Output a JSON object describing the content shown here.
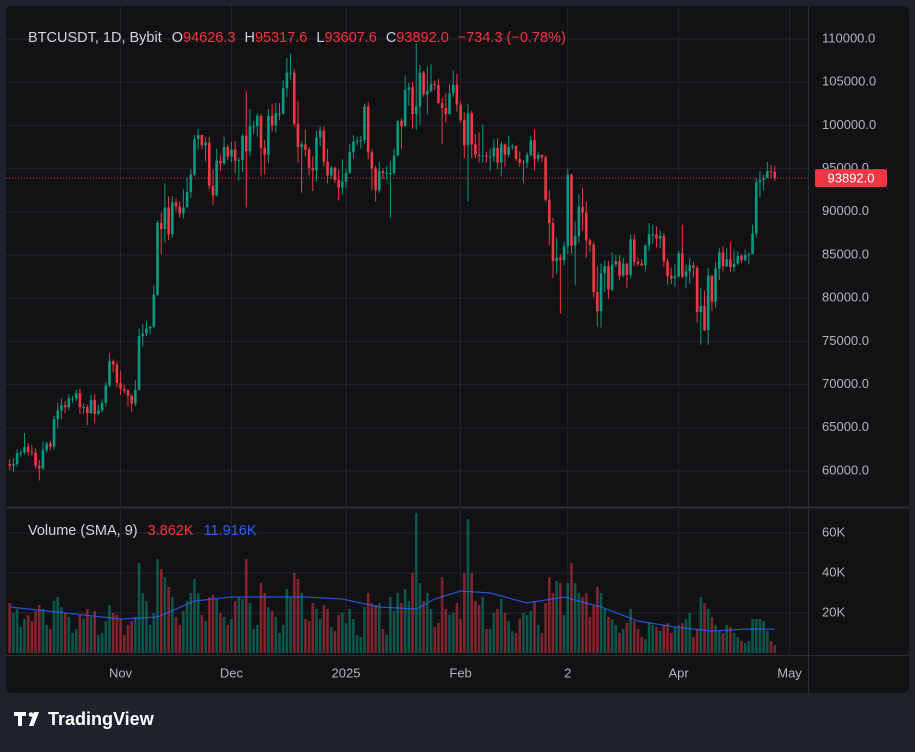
{
  "chart_data": {
    "type": "candlestick",
    "title": "BTCUSDT, 1D, Bybit",
    "header": [
      {
        "key": "O",
        "value": 94626.3,
        "label": "94626.3"
      },
      {
        "key": "H",
        "value": 95317.6,
        "label": "95317.6"
      },
      {
        "key": "L",
        "value": 93607.6,
        "label": "93607.6"
      },
      {
        "key": "C",
        "value": 93892.0,
        "label": "93892.0"
      }
    ],
    "change": "−734.3 (−0.78%)",
    "up_color": "#089981",
    "down_color": "#f23645",
    "grid": true,
    "xlim": [
      -1,
      216
    ],
    "xticks": [
      {
        "value": 30,
        "label": "Nov"
      },
      {
        "value": 60,
        "label": "Dec"
      },
      {
        "value": 91,
        "label": "2025"
      },
      {
        "value": 122,
        "label": "Feb"
      },
      {
        "value": 151,
        "label": "2"
      },
      {
        "value": 181,
        "label": "Apr"
      },
      {
        "value": 211,
        "label": "May"
      }
    ],
    "ylim": [
      55830,
      113820
    ],
    "yticks": [
      {
        "value": 60000,
        "label": "60000.0"
      },
      {
        "value": 65000,
        "label": "65000.0"
      },
      {
        "value": 70000,
        "label": "70000.0"
      },
      {
        "value": 75000,
        "label": "75000.0"
      },
      {
        "value": 80000,
        "label": "80000.0"
      },
      {
        "value": 85000,
        "label": "85000.0"
      },
      {
        "value": 90000,
        "label": "90000.0"
      },
      {
        "value": 95000,
        "label": "95000.0"
      },
      {
        "value": 100000,
        "label": "100000.0"
      },
      {
        "value": 105000,
        "label": "105000.0"
      },
      {
        "value": 110000,
        "label": "110000.0"
      }
    ],
    "last_price": {
      "value": 93892.0,
      "label": "93892.0"
    },
    "open": [
      60800,
      60600,
      60800,
      62100,
      62100,
      62800,
      62200,
      62100,
      60600,
      60300,
      62400,
      63200,
      62800,
      66000,
      67000,
      67600,
      67400,
      68400,
      68400,
      69000,
      67400,
      67400,
      66700,
      68200,
      66600,
      67000,
      67900,
      69900,
      72700,
      72300,
      70200,
      69500,
      69300,
      68700,
      67800,
      69400,
      75600,
      75900,
      76500,
      76700,
      80400,
      88700,
      88000,
      90500,
      87400,
      91100,
      90600,
      89800,
      90500,
      92300,
      94300,
      98400,
      98900,
      97700,
      98000,
      93000,
      91900,
      95900,
      95600,
      97500,
      96400,
      97200,
      95900,
      96000,
      98800,
      97000,
      99900,
      99900,
      101100,
      97400,
      96600,
      101100,
      100000,
      101400,
      101400,
      104300,
      106100,
      106100,
      100200,
      97500,
      97800,
      97200,
      95100,
      94800,
      98600,
      99400,
      95800,
      94200,
      95100,
      93700,
      92800,
      93500,
      94500,
      96900,
      98100,
      98200,
      98300,
      102200,
      96900,
      95000,
      92500,
      94700,
      94500,
      94500,
      94500,
      96500,
      100500,
      99900,
      104100,
      104400,
      101300,
      102200,
      106100,
      103600,
      104000,
      104800,
      104700,
      102600,
      102000,
      101300,
      103700,
      104700,
      102400,
      100600,
      97700,
      101400,
      97800,
      96600,
      96500,
      96500,
      96400,
      96400,
      97400,
      95700,
      97800,
      96600,
      97500,
      97600,
      96100,
      95700,
      95700,
      96600,
      98300,
      96100,
      96600,
      96300,
      91400,
      88700,
      84300,
      84700,
      84400,
      86000,
      94300,
      86100,
      87200,
      90600,
      89900,
      86700,
      86200,
      80700,
      78500,
      82900,
      83700,
      81000,
      83900,
      84300,
      82600,
      84000,
      82700,
      86800,
      84200,
      84000,
      83800,
      86100,
      87400,
      87400,
      86900,
      87200,
      84300,
      82600,
      82300,
      82500,
      85200,
      82500,
      83100,
      83800,
      83500,
      78400,
      79100,
      76300,
      82600,
      79600,
      83400,
      85300,
      83700,
      84500,
      83600,
      84000,
      84900,
      84400,
      85000,
      85100,
      87500,
      93400,
      93700,
      93900,
      94700,
      94626.3
    ],
    "high": [
      61400,
      61500,
      62500,
      62500,
      64400,
      63200,
      63000,
      62600,
      61300,
      63400,
      63400,
      63500,
      66400,
      67900,
      68400,
      68100,
      68900,
      68700,
      69400,
      69500,
      67800,
      67700,
      68800,
      68900,
      67700,
      68300,
      70300,
      73600,
      72900,
      72700,
      71600,
      70000,
      69500,
      68900,
      70500,
      76500,
      77000,
      77300,
      76800,
      81500,
      89000,
      89900,
      93300,
      91800,
      91800,
      91500,
      91200,
      92600,
      94000,
      94900,
      98900,
      99600,
      98700,
      98600,
      98700,
      94900,
      97300,
      96600,
      98700,
      97800,
      98100,
      98200,
      96300,
      99000,
      104000,
      101900,
      100500,
      101400,
      101300,
      98300,
      101900,
      102500,
      102600,
      102600,
      105200,
      107800,
      108300,
      106500,
      102800,
      98100,
      99500,
      97500,
      96400,
      99400,
      99900,
      99900,
      97300,
      95300,
      95200,
      94900,
      96100,
      95000,
      97800,
      98900,
      98700,
      98800,
      102500,
      102700,
      97200,
      95300,
      95800,
      95000,
      95300,
      95900,
      97300,
      100600,
      100800,
      105800,
      104900,
      105000,
      109500,
      107000,
      106300,
      106800,
      107100,
      105200,
      105400,
      103200,
      103700,
      104800,
      106400,
      106000,
      102800,
      101500,
      102500,
      101700,
      99000,
      99200,
      100100,
      96900,
      97300,
      98400,
      98500,
      98100,
      97900,
      98800,
      97900,
      97700,
      97000,
      96000,
      96900,
      98700,
      99500,
      96900,
      96600,
      96500,
      92500,
      89300,
      87000,
      85100,
      86500,
      95000,
      94400,
      88900,
      92000,
      92800,
      91200,
      86900,
      86500,
      83700,
      84000,
      84400,
      84300,
      85300,
      85000,
      85000,
      84700,
      84100,
      87400,
      87400,
      84700,
      84500,
      86200,
      88700,
      88500,
      88300,
      87800,
      87500,
      84600,
      83500,
      83900,
      85500,
      88500,
      83900,
      84700,
      84200,
      83800,
      81200,
      80900,
      83500,
      82700,
      84200,
      85800,
      86000,
      85800,
      86500,
      85500,
      85400,
      85100,
      85600,
      85300,
      88500,
      93900,
      94700,
      94300,
      95800,
      95400,
      95317.6
    ],
    "low": [
      60100,
      59900,
      60500,
      61600,
      61900,
      61800,
      61800,
      60300,
      58900,
      60100,
      62100,
      62400,
      62500,
      64900,
      66000,
      66700,
      67000,
      67900,
      68100,
      66600,
      66600,
      65300,
      66600,
      65500,
      66500,
      66800,
      67500,
      69700,
      71400,
      69700,
      68800,
      69000,
      67500,
      66800,
      67500,
      69300,
      74400,
      75600,
      75800,
      76500,
      80300,
      85100,
      86400,
      86700,
      87000,
      90100,
      89300,
      89200,
      90500,
      91600,
      94100,
      97200,
      97200,
      95800,
      92600,
      90800,
      91800,
      94700,
      95400,
      96000,
      95700,
      94500,
      93600,
      94600,
      90500,
      96400,
      99000,
      98700,
      94100,
      94300,
      95600,
      99300,
      99200,
      100600,
      101200,
      103300,
      105300,
      99900,
      95700,
      92200,
      96400,
      94200,
      92400,
      93500,
      97600,
      95200,
      93300,
      93800,
      93300,
      91300,
      92000,
      92700,
      94400,
      96100,
      97700,
      97300,
      97900,
      96100,
      92500,
      91200,
      92200,
      93800,
      93700,
      89300,
      94300,
      96500,
      97300,
      99900,
      102300,
      99600,
      99500,
      100100,
      103300,
      101300,
      103800,
      104100,
      102500,
      97800,
      100300,
      101300,
      103300,
      101600,
      100300,
      96200,
      91200,
      96200,
      96200,
      95700,
      95700,
      95700,
      94700,
      95800,
      94900,
      94100,
      95200,
      96300,
      97200,
      95900,
      95200,
      93400,
      95100,
      96400,
      94800,
      95800,
      95800,
      91200,
      86100,
      82300,
      82800,
      78200,
      83800,
      85100,
      85100,
      81500,
      86400,
      87800,
      84700,
      85300,
      80100,
      76700,
      76600,
      80700,
      79900,
      80800,
      83600,
      82100,
      82400,
      81200,
      82300,
      83700,
      83700,
      83700,
      83100,
      85500,
      86300,
      85900,
      85800,
      83600,
      81600,
      81600,
      81300,
      82400,
      82300,
      81200,
      81700,
      82400,
      77200,
      74600,
      76200,
      74600,
      78500,
      78900,
      82100,
      83100,
      83600,
      83000,
      83100,
      83800,
      84100,
      84300,
      83900,
      85100,
      87000,
      91700,
      92500,
      93900,
      93900,
      93607.6
    ],
    "close": [
      60600,
      60800,
      62100,
      62100,
      62800,
      62200,
      62100,
      60600,
      60300,
      62400,
      63200,
      62800,
      66000,
      67000,
      67600,
      67400,
      68400,
      68400,
      69000,
      67400,
      67400,
      66700,
      68200,
      66600,
      67000,
      67900,
      69900,
      72700,
      72300,
      70200,
      69500,
      69300,
      68700,
      67800,
      69400,
      75600,
      75900,
      76500,
      76700,
      80400,
      88700,
      88000,
      90500,
      87400,
      91100,
      90600,
      89800,
      90500,
      92300,
      94300,
      98400,
      98900,
      97700,
      98000,
      93000,
      91900,
      95900,
      95600,
      97500,
      96400,
      97200,
      95900,
      96000,
      98800,
      97000,
      99900,
      99900,
      101100,
      97400,
      96600,
      101100,
      100000,
      101400,
      101400,
      104300,
      106100,
      106100,
      100200,
      97500,
      97800,
      97200,
      95100,
      94800,
      98600,
      99400,
      95800,
      94200,
      95100,
      93700,
      92800,
      93500,
      94500,
      96900,
      98100,
      98200,
      98300,
      102200,
      96900,
      95000,
      92500,
      94700,
      94500,
      94500,
      94500,
      96500,
      100500,
      99900,
      104100,
      104400,
      101300,
      102200,
      106100,
      103600,
      104000,
      104800,
      104700,
      102600,
      102000,
      101300,
      103700,
      104700,
      102400,
      100600,
      97700,
      101400,
      97800,
      96600,
      96500,
      96500,
      96400,
      96400,
      97400,
      95700,
      97800,
      96600,
      97500,
      97600,
      96100,
      95700,
      95700,
      96600,
      98300,
      96100,
      96600,
      96300,
      91400,
      88700,
      84300,
      84700,
      84400,
      86000,
      94300,
      86100,
      87200,
      90600,
      89900,
      86700,
      86200,
      80700,
      78500,
      82900,
      83700,
      81000,
      83900,
      84300,
      82600,
      84000,
      82700,
      86800,
      84200,
      84000,
      83800,
      86100,
      87400,
      87400,
      86900,
      87200,
      84300,
      82600,
      82300,
      82500,
      85200,
      82500,
      83100,
      83800,
      83500,
      78400,
      79100,
      76300,
      82600,
      79600,
      83400,
      85300,
      83700,
      84500,
      83600,
      84000,
      84900,
      84400,
      85000,
      85100,
      87500,
      93400,
      93700,
      93900,
      94700,
      94626.3,
      93892.0
    ],
    "volume": {
      "title": "Volume (SMA, 9)",
      "ylim": [
        0,
        72500
      ],
      "yticks": [
        {
          "value": 20000,
          "label": "20K"
        },
        {
          "value": 40000,
          "label": "40K"
        },
        {
          "value": 60000,
          "label": "60K"
        }
      ],
      "last": {
        "value": 3862,
        "label": "3.862K"
      },
      "values": [
        25000,
        20000,
        22000,
        13000,
        17000,
        19000,
        16000,
        21000,
        24000,
        22000,
        14000,
        12000,
        26000,
        28000,
        23000,
        20000,
        18000,
        10000,
        12000,
        19000,
        17000,
        22000,
        18000,
        21000,
        9000,
        10000,
        16000,
        24000,
        20000,
        19000,
        17000,
        9000,
        14000,
        16000,
        18000,
        45000,
        30000,
        26000,
        14000,
        20000,
        47000,
        42000,
        38000,
        33000,
        28000,
        18000,
        14000,
        21000,
        26000,
        30000,
        37000,
        30000,
        19000,
        16000,
        28000,
        29000,
        27000,
        20000,
        18000,
        14000,
        17000,
        26000,
        28000,
        27000,
        47000,
        25000,
        12000,
        14000,
        35000,
        30000,
        23000,
        21000,
        18000,
        10000,
        14000,
        32000,
        28000,
        40000,
        37000,
        30000,
        17000,
        16000,
        25000,
        22000,
        17000,
        24000,
        22000,
        13000,
        11000,
        19000,
        20000,
        15000,
        22000,
        17000,
        9000,
        8000,
        23000,
        30000,
        25000,
        24000,
        25000,
        12000,
        9000,
        28000,
        21000,
        30000,
        25000,
        32000,
        26000,
        40000,
        70000,
        35000,
        26000,
        30000,
        22000,
        13000,
        15000,
        38000,
        22000,
        19000,
        20000,
        25000,
        17000,
        40000,
        67000,
        40000,
        26000,
        24000,
        28000,
        12000,
        12000,
        20000,
        22000,
        27000,
        20000,
        16000,
        11000,
        10000,
        17000,
        20000,
        19000,
        21000,
        26000,
        14000,
        10000,
        25000,
        38000,
        30000,
        36000,
        35000,
        19000,
        35000,
        45000,
        35000,
        30000,
        28000,
        30000,
        18000,
        24000,
        33000,
        30000,
        22000,
        18000,
        17000,
        14000,
        10000,
        12000,
        15000,
        22000,
        16000,
        12000,
        8000,
        7000,
        15000,
        14000,
        13000,
        11000,
        14000,
        15000,
        10000,
        13000,
        14000,
        15000,
        17000,
        20000,
        8000,
        12000,
        28000,
        25000,
        22000,
        18000,
        14000,
        11000,
        10000,
        14000,
        13000,
        10000,
        8000,
        6000,
        5000,
        6000,
        17000,
        17000,
        17000,
        16000,
        11000,
        6000,
        3862
      ],
      "sma": {
        "color": "#2962ff",
        "last": {
          "value": 11916,
          "label": "11.916K"
        },
        "x": [
          0,
          10,
          20,
          30,
          40,
          50,
          60,
          70,
          80,
          90,
          100,
          110,
          115,
          122,
          130,
          140,
          150,
          160,
          170,
          180,
          190,
          200,
          207
        ],
        "values": [
          23000,
          21000,
          19000,
          17000,
          18000,
          26000,
          28000,
          28000,
          28000,
          27000,
          23000,
          22000,
          27000,
          31000,
          30000,
          25000,
          28000,
          23000,
          16000,
          13000,
          11000,
          12000,
          11916
        ]
      }
    }
  },
  "footer": {
    "brand": "TradingView"
  }
}
